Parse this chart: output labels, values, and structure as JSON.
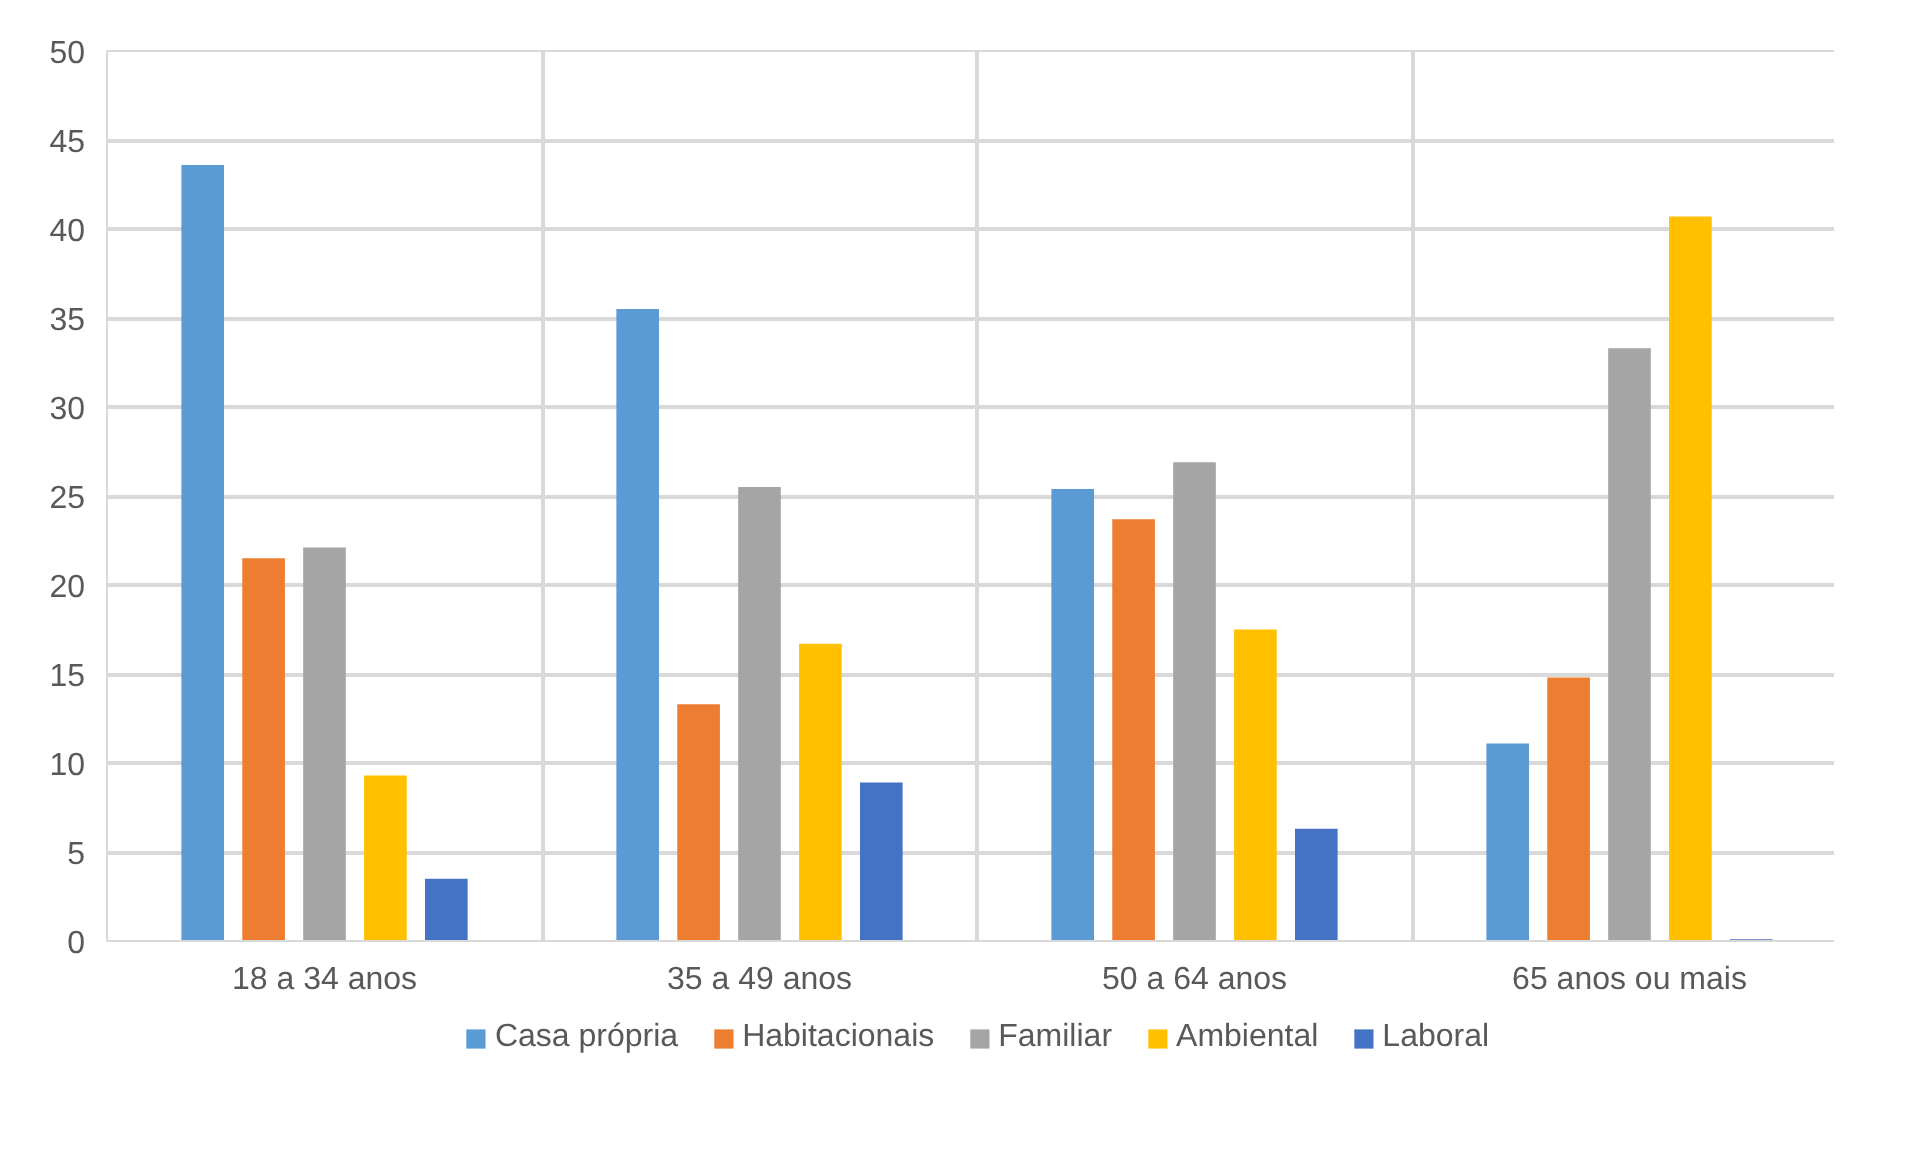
{
  "chart_data": {
    "type": "bar",
    "categories": [
      "18 a 34 anos",
      "35 a 49 anos",
      "50 a 64 anos",
      "65 anos ou mais"
    ],
    "series": [
      {
        "name": "Casa própria",
        "color": "#5b9bd5",
        "values": [
          43.6,
          35.5,
          25.4,
          11.1
        ]
      },
      {
        "name": "Habitacionais",
        "color": "#ed7d31",
        "values": [
          21.5,
          13.3,
          23.7,
          14.8
        ]
      },
      {
        "name": "Familiar",
        "color": "#a5a5a5",
        "values": [
          22.1,
          25.5,
          26.9,
          33.3
        ]
      },
      {
        "name": "Ambiental",
        "color": "#ffc000",
        "values": [
          9.3,
          16.7,
          17.5,
          40.7
        ]
      },
      {
        "name": "Laboral",
        "color": "#4472c4",
        "values": [
          3.5,
          8.9,
          6.3,
          0.1
        ]
      }
    ],
    "ylim": [
      0,
      50
    ],
    "yticks": [
      0,
      5,
      10,
      15,
      20,
      25,
      30,
      35,
      40,
      45,
      50
    ],
    "grid": true,
    "legend": "bottom"
  }
}
